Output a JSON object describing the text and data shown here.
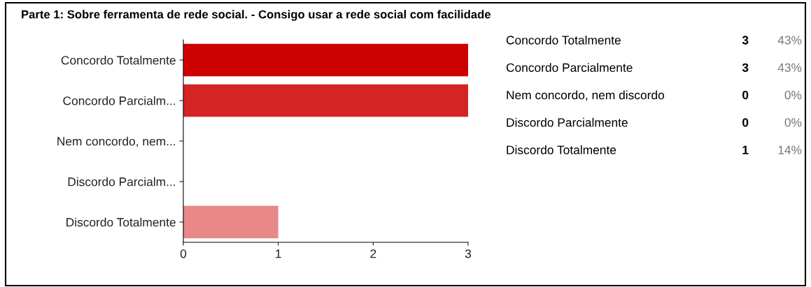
{
  "chart_data": {
    "type": "bar",
    "orientation": "horizontal",
    "title": "Parte 1: Sobre ferramenta de rede social. - Consigo usar a rede social com facilidade",
    "categories": [
      "Concordo Totalmente",
      "Concordo Parcialm...",
      "Nem concordo, nem...",
      "Discordo Parcialm...",
      "Discordo Totalmente"
    ],
    "values": [
      3,
      3,
      0,
      0,
      1
    ],
    "colors": [
      "#cc0000",
      "#d52424",
      "#dd4444",
      "#e26666",
      "#e88888"
    ],
    "xlim": [
      0,
      3
    ],
    "xticks": [
      0,
      1,
      2,
      3
    ],
    "grid": false,
    "legend": false,
    "annotations": [
      "Concordo Totalmente",
      "Concordo Parcialmente",
      "Nem concordo, nem discordo",
      "Discordo Parcialmente",
      "Discordo Totalmente",
      "3",
      "3",
      "0",
      "0",
      "1",
      "43%",
      "43%",
      "0%",
      "0%",
      "14%"
    ]
  }
}
